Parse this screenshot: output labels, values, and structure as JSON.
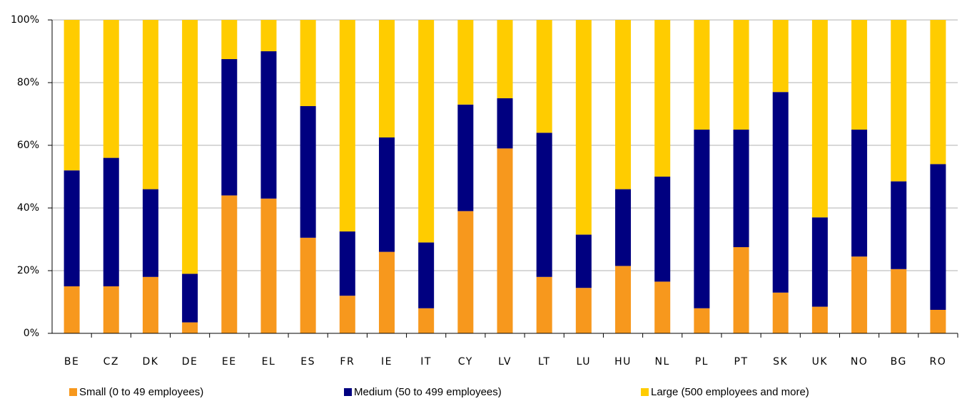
{
  "chart_data": {
    "type": "stacked_bar",
    "categories": [
      "BE",
      "CZ",
      "DK",
      "DE",
      "EE",
      "EL",
      "ES",
      "FR",
      "IE",
      "IT",
      "CY",
      "LV",
      "LT",
      "LU",
      "HU",
      "NL",
      "PL",
      "PT",
      "SK",
      "UK",
      "NO",
      "BG",
      "RO"
    ],
    "series": [
      {
        "name": "Small (0 to 49 employees)",
        "color": "#f7981d",
        "values": [
          15,
          15,
          18,
          3.5,
          44,
          43,
          30.5,
          12,
          26,
          8,
          39,
          59,
          18,
          14.5,
          21.5,
          16.5,
          8,
          27.5,
          13,
          8.5,
          24.5,
          20.5,
          7.5
        ]
      },
      {
        "name": "Medium (50 to 499 employees)",
        "color": "#000080",
        "values": [
          37,
          41,
          28,
          15.5,
          43.5,
          47,
          42,
          20.5,
          36.5,
          21,
          34,
          16,
          46,
          17,
          24.5,
          33.5,
          57,
          37.5,
          64,
          28.5,
          40.5,
          28,
          46.5
        ]
      },
      {
        "name": "Large (500 employees and more)",
        "color": "#ffcc00",
        "values": [
          48,
          44,
          54,
          81,
          12.5,
          10,
          27.5,
          67.5,
          37.5,
          71,
          27,
          25,
          36,
          68.5,
          54,
          50,
          35,
          35,
          23,
          63,
          35,
          51.5,
          46
        ]
      }
    ],
    "ylim": [
      0,
      100
    ],
    "yticks": [
      {
        "value": 0,
        "label": "0%"
      },
      {
        "value": 20,
        "label": "20%"
      },
      {
        "value": 40,
        "label": "40%"
      },
      {
        "value": 60,
        "label": "60%"
      },
      {
        "value": 80,
        "label": "80%"
      },
      {
        "value": 100,
        "label": "100%"
      }
    ],
    "grid": true,
    "legend": "bottom"
  }
}
